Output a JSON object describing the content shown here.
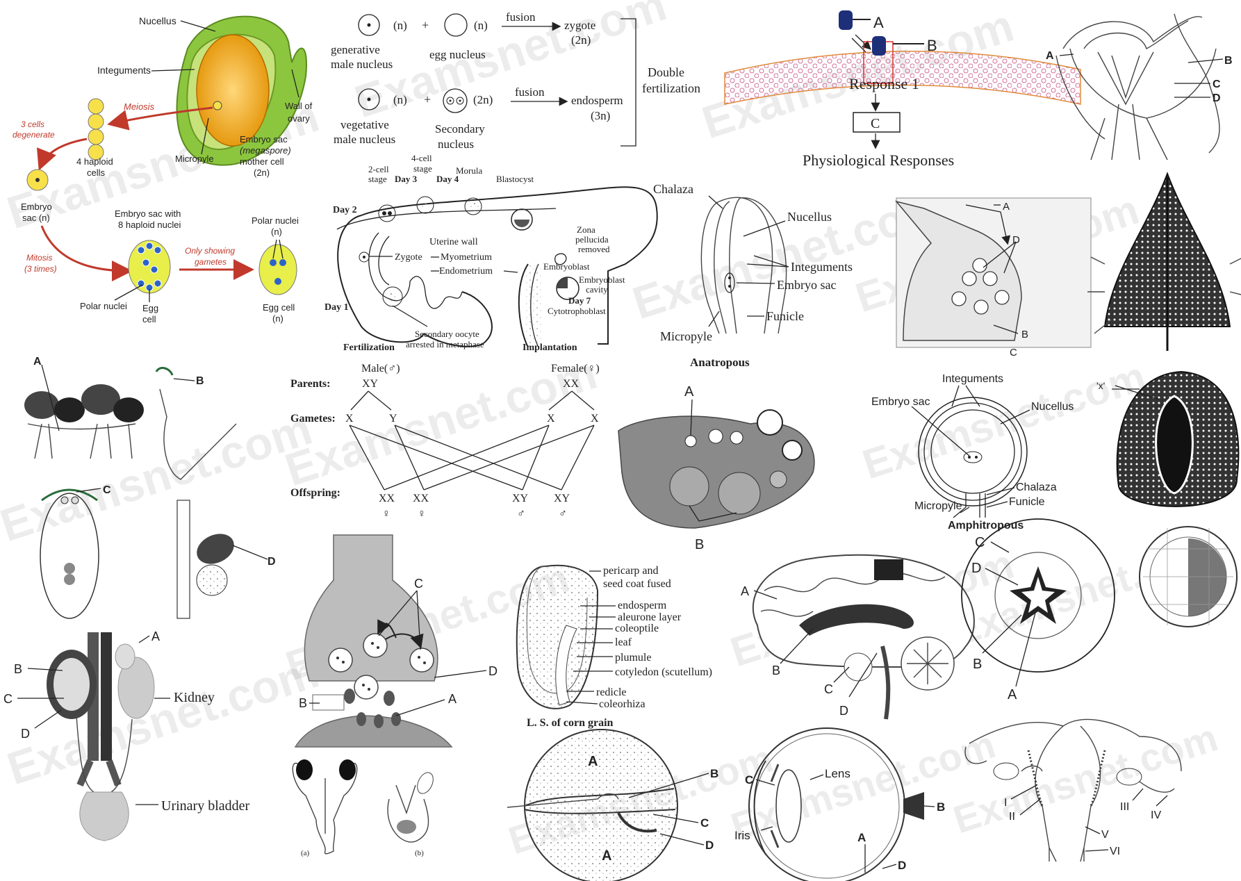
{
  "watermark": "Examsnet.com",
  "ovule_meiosis": {
    "nucellus": "Nucellus",
    "integuments": "Integuments",
    "wall_of_ovary": [
      "Wall of",
      "ovary"
    ],
    "micropyle": "Micropyle",
    "mother_cell": [
      "Embryo sac",
      "(megaspore)",
      "mother cell",
      "(2n)"
    ],
    "meiosis": "Meiosis",
    "degenerate": [
      "3 cells",
      "degenerate"
    ],
    "haploid_cells": [
      "4 haploid",
      "cells"
    ],
    "embryo_sac": [
      "Embryo",
      "sac (n)"
    ],
    "mitosis": [
      "Mitosis",
      "(3 times)"
    ],
    "sac_8_nuclei": [
      "Embryo sac with",
      "8 haploid nuclei"
    ],
    "only_gametes": [
      "Only showing",
      "gametes"
    ],
    "polar_nuclei_right": [
      "Polar nuclei",
      "(n)"
    ],
    "polar_nuclei_left": "Polar nuclei",
    "egg_cell_left": [
      "Egg",
      "cell"
    ],
    "egg_cell_right": [
      "Egg cell",
      "(n)"
    ]
  },
  "double_fertilization": {
    "n": "(n)",
    "two_n": "(2n)",
    "plus": "+",
    "fusion": "fusion",
    "generative": [
      "generative",
      "male nucleus"
    ],
    "egg_nucleus": "egg nucleus",
    "zygote": [
      "zygote",
      "(2n)"
    ],
    "vegetative": [
      "vegetative",
      "male nucleus"
    ],
    "secondary": [
      "Secondary",
      "nucleus"
    ],
    "endosperm": [
      "endosperm",
      "(3n)"
    ],
    "title": [
      "Double",
      "fertilization"
    ]
  },
  "implantation": {
    "two_cell": [
      "2-cell",
      "stage"
    ],
    "four_cell": [
      "4-cell",
      "stage"
    ],
    "day2": "Day 2",
    "day3": "Day 3",
    "day4": "Day 4",
    "day1": "Day 1",
    "day7": "Day 7",
    "morula": "Morula",
    "blastocyst": "Blastocyst",
    "zona": [
      "Zona",
      "pellucida",
      "removed"
    ],
    "uterine_wall": "Uterine wall",
    "zygote": "Zygote",
    "myometrium": "Myometrium",
    "endometrium": "Endometrium",
    "embryoblast": "Embryoblast",
    "embryoblast_cavity": [
      "Embryoblast",
      "cavity"
    ],
    "cytotrophoblast": "Cytotrophoblast",
    "secondary_oocyte": [
      "Secondary oocyte",
      "arrested in metaphase"
    ],
    "fertilization": "Fertilization",
    "implantation": "Implantation"
  },
  "hormone_response": {
    "a": "A",
    "b": "B",
    "response1": "Response 1",
    "c": "C",
    "physio": "Physiological Responses"
  },
  "male_repro": {
    "a": "A",
    "b": "B",
    "c": "C",
    "d": "D"
  },
  "anatropous": {
    "chalaza": "Chalaza",
    "nucellus": "Nucellus",
    "integuments": "Integuments",
    "embryo_sac": "Embryo sac",
    "funicle": "Funicle",
    "micropyle": "Micropyle",
    "title": "Anatropous"
  },
  "synapse_sketch": {
    "a": "A",
    "b": "B",
    "c": "C",
    "d": "D"
  },
  "sex_cross": {
    "male": "Male(♂)",
    "female": "Female(♀)",
    "parents": "Parents:",
    "xy": "XY",
    "xx": "XX",
    "gametes": "Gametes:",
    "x": "X",
    "y": "Y",
    "offspring": "Offspring:",
    "female_sym": "♀",
    "male_sym": "♂"
  },
  "fungi": {
    "a": "A",
    "b": "B",
    "c": "C",
    "d": "D"
  },
  "ovary_section": {
    "a": "A",
    "b": "B"
  },
  "amphitropous": {
    "integuments": "Integuments",
    "embryo_sac": "Embryo sac",
    "nucellus": "Nucellus",
    "chalaza": "Chalaza",
    "funicle": "Funicle",
    "micropyle": "Micropyle",
    "title": "Amphitropous"
  },
  "seed_x": {
    "x": "'x'"
  },
  "kidney": {
    "a": "A",
    "b": "B",
    "c": "C",
    "d": "D",
    "kidney": "Kidney",
    "bladder": "Urinary bladder"
  },
  "synapse": {
    "a": "A",
    "b": "B",
    "c": "C",
    "d": "D"
  },
  "corn": {
    "pericarp": [
      "pericarp and",
      "seed coat fused"
    ],
    "endosperm": "endosperm",
    "aleurone": "aleurone layer",
    "coleoptile": "coleoptile",
    "leaf": "leaf",
    "plumule": "plumule",
    "cotyledon": "cotyledon (scutellum)",
    "redicle": "redicle",
    "coleorhiza": "coleorhiza",
    "title": "L. S. of corn grain"
  },
  "brain": {
    "a": "A",
    "b": "B",
    "c": "C",
    "d": "D"
  },
  "seed_cs": {
    "a": "A",
    "b": "B",
    "c": "C",
    "d": "D"
  },
  "flowers": {
    "a": "(a)",
    "b": "(b)"
  },
  "ovule_abcd": {
    "a": "A",
    "b": "B",
    "c": "C",
    "d": "D"
  },
  "eye": {
    "lens": "Lens",
    "c": "C",
    "iris": "Iris",
    "a": "A",
    "b": "B",
    "d": "D"
  },
  "uterus": {
    "i": "I",
    "ii": "II",
    "iii": "III",
    "iv": "IV",
    "v": "V",
    "vi": "VI"
  }
}
